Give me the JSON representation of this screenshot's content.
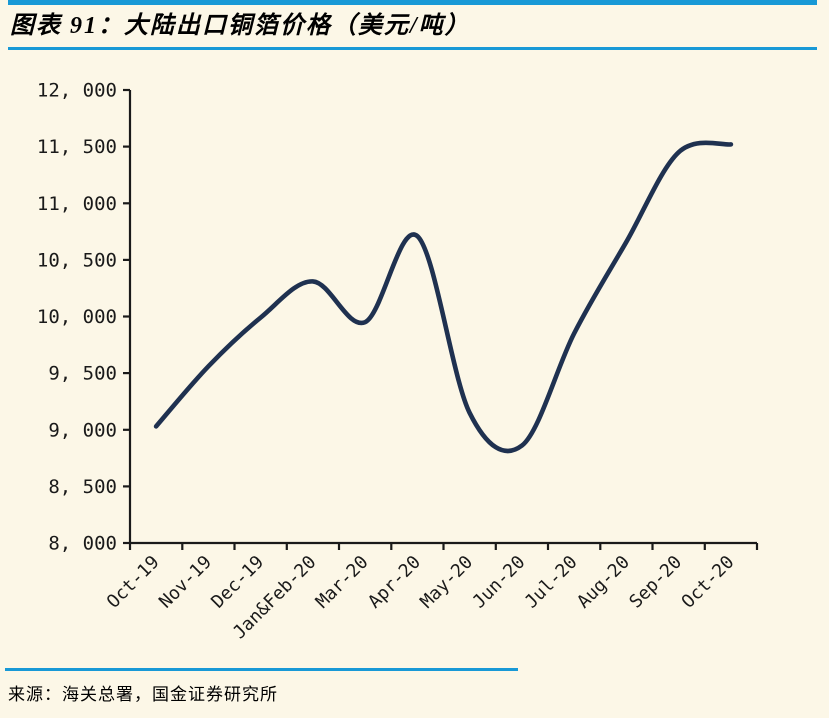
{
  "header": {
    "title": "图表 91：大陆出口铜箔价格（美元/吨）"
  },
  "footer": {
    "source": "来源：海关总署，国金证券研究所"
  },
  "colors": {
    "accent_blue_rule": "#1899D6",
    "background_cream": "#FCF7E7",
    "line_navy": "#1F3150",
    "axis_black": "#1A1A1A",
    "text_black": "#000000"
  },
  "chart_data": {
    "type": "line",
    "title": "大陆出口铜箔价格（美元/吨）",
    "categories": [
      "Oct-19",
      "Nov-19",
      "Dec-19",
      "Jan&Feb-20",
      "Mar-20",
      "Apr-20",
      "May-20",
      "Jun-20",
      "Jul-20",
      "Aug-20",
      "Sep-20",
      "Oct-20"
    ],
    "series": [
      {
        "name": "大陆出口铜箔价格",
        "values": [
          9030,
          9560,
          9990,
          10310,
          9950,
          10710,
          9150,
          8860,
          9850,
          10660,
          11450,
          11520
        ]
      }
    ],
    "xlabel": "",
    "ylabel": "",
    "ylim": [
      8000,
      12000
    ],
    "y_ticks": [
      8000,
      8500,
      9000,
      9500,
      10000,
      10500,
      11000,
      11500,
      12000
    ],
    "y_tick_labels": [
      "8, 000",
      "8, 500",
      "9, 000",
      "9, 500",
      "10, 000",
      "10, 500",
      "11, 000",
      "11, 500",
      "12, 000"
    ],
    "grid": false,
    "legend": "none",
    "smooth": true,
    "x_label_rotation": -45,
    "line_color": "#1F3150"
  }
}
